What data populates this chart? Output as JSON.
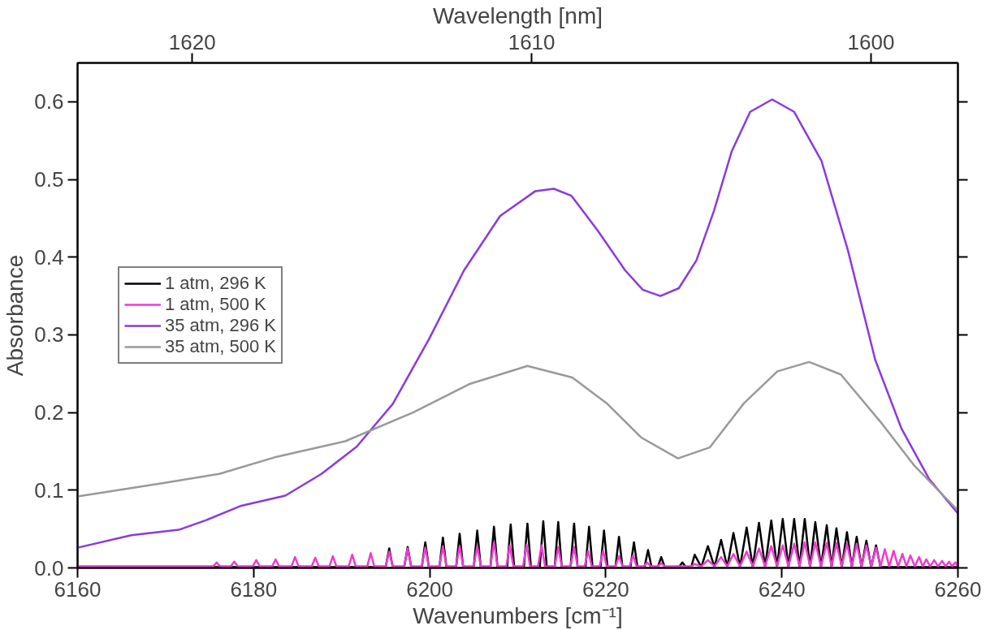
{
  "chart_data": {
    "type": "line",
    "xlabel": "Wavenumbers [cm⁻¹]",
    "ylabel": "Absorbance",
    "x2label": "Wavelength [nm]",
    "xlim": [
      6160,
      6260
    ],
    "xticks": [
      6160,
      6180,
      6200,
      6220,
      6240,
      6260
    ],
    "ylim": [
      0,
      0.65
    ],
    "yticks": [
      {
        "value": 0,
        "label": "0.0"
      },
      0.1,
      0.2,
      0.3,
      0.4,
      0.5,
      0.6
    ],
    "x2lim": [
      1623.38,
      1597.44
    ],
    "x2ticks": [
      1620,
      1610,
      1600
    ],
    "grid": false,
    "legend": "left",
    "marker": "none",
    "line_style": "solid",
    "series": [
      {
        "name": "1 atm, 296 K",
        "color": "#000000",
        "x": [
          6160,
          6195.0,
          6195.4,
          6195.8,
          6197.1,
          6197.5,
          6197.9,
          6199.1,
          6199.5,
          6199.9,
          6201.1,
          6201.5,
          6201.9,
          6203.0,
          6203.4,
          6203.8,
          6205.0,
          6205.4,
          6205.8,
          6206.9,
          6207.3,
          6207.7,
          6208.8,
          6209.2,
          6209.6,
          6210.7,
          6211.1,
          6211.5,
          6212.5,
          6212.9,
          6213.3,
          6214.2,
          6214.6,
          6215.0,
          6216.0,
          6216.4,
          6216.8,
          6217.7,
          6218.1,
          6218.5,
          6219.4,
          6219.8,
          6220.2,
          6221.1,
          6221.5,
          6221.9,
          6222.8,
          6223.2,
          6223.6,
          6224.4,
          6224.8,
          6225.2,
          6225.9,
          6226.3,
          6226.7,
          6228.3,
          6228.7,
          6229.1,
          6229.7,
          6230.1,
          6230.85,
          6231.6,
          6232.35,
          6233.1,
          6233.8,
          6234.5,
          6235.25,
          6236.0,
          6236.7,
          6237.4,
          6238.1,
          6238.8,
          6239.45,
          6240.1,
          6240.75,
          6241.4,
          6242.0,
          6242.6,
          6243.2,
          6243.8,
          6244.45,
          6245.1,
          6245.65,
          6246.2,
          6246.8,
          6247.4,
          6247.95,
          6248.5,
          6249.05,
          6249.6,
          6250.15,
          6250.7,
          6251.2,
          6260
        ],
        "values": [
          0.001,
          0.001,
          0.025,
          0.001,
          0.001,
          0.027,
          0.001,
          0.001,
          0.033,
          0.001,
          0.001,
          0.039,
          0.001,
          0.001,
          0.044,
          0.001,
          0.001,
          0.048,
          0.001,
          0.001,
          0.053,
          0.001,
          0.001,
          0.056,
          0.001,
          0.001,
          0.057,
          0.001,
          0.001,
          0.06,
          0.001,
          0.001,
          0.059,
          0.001,
          0.001,
          0.057,
          0.001,
          0.001,
          0.053,
          0.001,
          0.001,
          0.048,
          0.001,
          0.001,
          0.04,
          0.001,
          0.001,
          0.033,
          0.001,
          0.001,
          0.023,
          0.001,
          0.001,
          0.014,
          0.001,
          0.001,
          0.007,
          0.001,
          0.001,
          0.017,
          0.001,
          0.028,
          0.001,
          0.036,
          0.001,
          0.045,
          0.001,
          0.052,
          0.001,
          0.058,
          0.001,
          0.061,
          0.001,
          0.063,
          0.001,
          0.063,
          0.001,
          0.063,
          0.001,
          0.059,
          0.001,
          0.055,
          0.001,
          0.051,
          0.001,
          0.046,
          0.001,
          0.04,
          0.001,
          0.035,
          0.001,
          0.029,
          0.001,
          0.001
        ]
      },
      {
        "name": "1 atm, 500 K",
        "color": "#f03ad0",
        "x": [
          6160,
          6175.4,
          6175.8,
          6176.2,
          6177.4,
          6177.8,
          6178.2,
          6179.9,
          6180.3,
          6180.7,
          6182.1,
          6182.5,
          6182.9,
          6184.3,
          6184.7,
          6185.1,
          6186.6,
          6187.0,
          6187.4,
          6188.6,
          6189.0,
          6189.4,
          6190.8,
          6191.2,
          6191.6,
          6192.9,
          6193.3,
          6193.7,
          6195.0,
          6195.4,
          6195.8,
          6197.1,
          6197.5,
          6197.9,
          6199.1,
          6199.5,
          6199.9,
          6201.1,
          6201.5,
          6201.9,
          6203.0,
          6203.4,
          6203.8,
          6205.0,
          6205.4,
          6205.8,
          6206.9,
          6207.3,
          6207.7,
          6208.7,
          6209.1,
          6209.5,
          6210.6,
          6211.0,
          6211.4,
          6212.3,
          6212.7,
          6213.1,
          6214.2,
          6214.6,
          6215.0,
          6216.0,
          6216.4,
          6216.8,
          6217.6,
          6218.0,
          6218.4,
          6219.3,
          6219.7,
          6220.1,
          6221.1,
          6221.5,
          6221.9,
          6222.7,
          6223.1,
          6223.5,
          6224.3,
          6224.7,
          6225.1,
          6225.9,
          6226.3,
          6226.7,
          6229.7,
          6230.1,
          6230.85,
          6231.6,
          6232.35,
          6233.1,
          6233.8,
          6234.5,
          6235.25,
          6236.0,
          6236.7,
          6237.4,
          6238.1,
          6238.8,
          6239.45,
          6240.1,
          6240.75,
          6241.4,
          6242.0,
          6242.6,
          6243.2,
          6243.8,
          6244.45,
          6245.1,
          6245.65,
          6246.2,
          6246.8,
          6247.4,
          6247.95,
          6248.5,
          6249.05,
          6249.6,
          6250.15,
          6250.7,
          6251.2,
          6251.7,
          6252.2,
          6252.7,
          6253.2,
          6253.7,
          6254.15,
          6254.6,
          6255.1,
          6255.6,
          6256.0,
          6256.4,
          6256.85,
          6257.3,
          6257.75,
          6258.2,
          6258.6,
          6259.0,
          6259.35,
          6259.7,
          6260
        ],
        "values": [
          0.002,
          0.002,
          0.007,
          0.002,
          0.002,
          0.008,
          0.002,
          0.002,
          0.01,
          0.002,
          0.002,
          0.011,
          0.002,
          0.002,
          0.014,
          0.002,
          0.002,
          0.013,
          0.002,
          0.002,
          0.015,
          0.002,
          0.002,
          0.017,
          0.002,
          0.002,
          0.019,
          0.002,
          0.002,
          0.021,
          0.002,
          0.002,
          0.025,
          0.002,
          0.002,
          0.026,
          0.002,
          0.002,
          0.028,
          0.002,
          0.002,
          0.028,
          0.002,
          0.002,
          0.028,
          0.002,
          0.002,
          0.033,
          0.002,
          0.002,
          0.029,
          0.002,
          0.002,
          0.03,
          0.002,
          0.002,
          0.029,
          0.002,
          0.002,
          0.027,
          0.002,
          0.002,
          0.027,
          0.002,
          0.002,
          0.022,
          0.002,
          0.002,
          0.022,
          0.002,
          0.002,
          0.015,
          0.002,
          0.002,
          0.016,
          0.002,
          0.002,
          0.007,
          0.002,
          0.002,
          0.006,
          0.002,
          0.002,
          0.005,
          0.002,
          0.01,
          0.002,
          0.014,
          0.002,
          0.018,
          0.002,
          0.021,
          0.002,
          0.025,
          0.002,
          0.028,
          0.002,
          0.029,
          0.002,
          0.031,
          0.002,
          0.033,
          0.002,
          0.033,
          0.002,
          0.032,
          0.002,
          0.032,
          0.002,
          0.031,
          0.002,
          0.031,
          0.002,
          0.029,
          0.002,
          0.026,
          0.002,
          0.024,
          0.002,
          0.022,
          0.002,
          0.018,
          0.002,
          0.016,
          0.002,
          0.014,
          0.002,
          0.011,
          0.002,
          0.01,
          0.002,
          0.009,
          0.002,
          0.008,
          0.002,
          0.007,
          0.002
        ]
      },
      {
        "name": "35 atm, 296 K",
        "color": "#8a3ae0",
        "x": [
          6160,
          6166.1,
          6171.5,
          6174.5,
          6178.6,
          6183.6,
          6187.7,
          6191.7,
          6195.8,
          6199.9,
          6203.9,
          6208.0,
          6212.0,
          6214.1,
          6216.1,
          6219.1,
          6222.2,
          6224.2,
          6226.2,
          6228.3,
          6230.3,
          6232.3,
          6234.3,
          6236.4,
          6238.9,
          6241.4,
          6244.5,
          6247.5,
          6250.6,
          6253.6,
          6256.7,
          6260
        ],
        "values": [
          0.026,
          0.042,
          0.049,
          0.061,
          0.08,
          0.093,
          0.121,
          0.156,
          0.211,
          0.294,
          0.383,
          0.453,
          0.485,
          0.488,
          0.479,
          0.434,
          0.383,
          0.358,
          0.35,
          0.36,
          0.396,
          0.46,
          0.536,
          0.587,
          0.603,
          0.587,
          0.524,
          0.409,
          0.268,
          0.179,
          0.115,
          0.07
        ]
      },
      {
        "name": "35 atm, 500 K",
        "color": "#999999",
        "x": [
          6160,
          6169.6,
          6176.1,
          6182.6,
          6190.4,
          6198.1,
          6204.6,
          6211.1,
          6216.2,
          6220.1,
          6224.0,
          6228.2,
          6231.8,
          6235.7,
          6239.5,
          6243.1,
          6246.7,
          6251.2,
          6255.1,
          6260
        ],
        "values": [
          0.092,
          0.109,
          0.121,
          0.143,
          0.163,
          0.2,
          0.237,
          0.26,
          0.245,
          0.212,
          0.168,
          0.141,
          0.155,
          0.212,
          0.253,
          0.265,
          0.249,
          0.188,
          0.131,
          0.074
        ]
      }
    ]
  }
}
